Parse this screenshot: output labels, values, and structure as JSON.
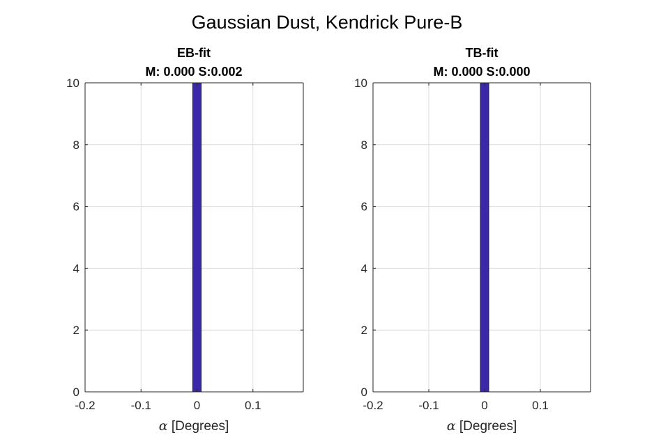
{
  "figure": {
    "title": "Gaussian Dust, Kendrick Pure-B"
  },
  "chart_data": [
    {
      "type": "bar",
      "title": "EB-fit",
      "subtitle": "M: 0.000 S:0.002",
      "xlabel_symbol": "α",
      "xlabel": " [Degrees]",
      "xlim": [
        -0.2,
        0.19
      ],
      "ylim": [
        0,
        10
      ],
      "xticks": [
        -0.2,
        -0.1,
        0,
        0.1
      ],
      "xtick_labels": [
        "-0.2",
        "-0.1",
        "0",
        "0.1"
      ],
      "yticks": [
        0,
        2,
        4,
        6,
        8,
        10
      ],
      "ytick_labels": [
        "0",
        "2",
        "4",
        "6",
        "8",
        "10"
      ],
      "grid": true,
      "bar_color": "#3b28a8",
      "bins": [
        {
          "left": -0.0075,
          "right": 0.0075,
          "count": 10
        }
      ]
    },
    {
      "type": "bar",
      "title": "TB-fit",
      "subtitle": "M: 0.000 S:0.000",
      "xlabel_symbol": "α",
      "xlabel": " [Degrees]",
      "xlim": [
        -0.2,
        0.19
      ],
      "ylim": [
        0,
        10
      ],
      "xticks": [
        -0.2,
        -0.1,
        0,
        0.1
      ],
      "xtick_labels": [
        "-0.2",
        "-0.1",
        "0",
        "0.1"
      ],
      "yticks": [
        0,
        2,
        4,
        6,
        8,
        10
      ],
      "ytick_labels": [
        "0",
        "2",
        "4",
        "6",
        "8",
        "10"
      ],
      "grid": true,
      "bar_color": "#3b28a8",
      "bins": [
        {
          "left": -0.0075,
          "right": 0.0075,
          "count": 10
        }
      ]
    }
  ]
}
